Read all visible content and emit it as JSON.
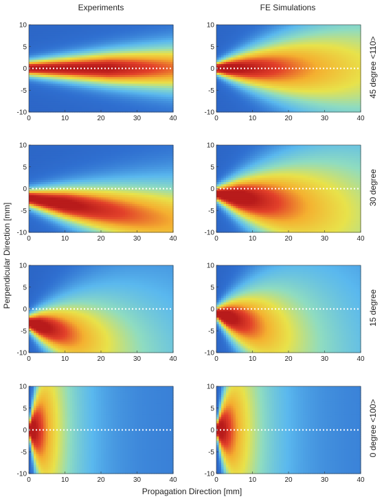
{
  "figure": {
    "column_titles": [
      "Experiments",
      "FE Simulations"
    ],
    "row_labels": [
      "45 degree <110>",
      "30 degree",
      "15 degree",
      "0 degree <100>"
    ],
    "xlabel": "Propagation Direction [mm]",
    "ylabel": "Perpendicular Direction [mm]",
    "colormap": [
      "#1f3b99",
      "#2f6fd0",
      "#5ab8ee",
      "#8fdcc0",
      "#e8e24a",
      "#f4b030",
      "#e2402a",
      "#b81b1b"
    ]
  },
  "chart_data": [
    {
      "type": "heatmap",
      "panel": "Experiments / 45 degree <110>",
      "xlim": [
        0,
        40
      ],
      "ylim": [
        -10,
        10
      ],
      "xticks": [
        0,
        10,
        20,
        30,
        40
      ],
      "yticks": [
        10,
        5,
        0,
        -5,
        -10
      ],
      "reference_line_y": 0,
      "beam": {
        "center_start": 0,
        "slope": 0,
        "width_start": 1.6,
        "width_growth": 0.01,
        "peak": 0.85,
        "peak_x": 22,
        "decay_x": 60
      }
    },
    {
      "type": "heatmap",
      "panel": "FE Simulations / 45 degree <110>",
      "xlim": [
        0,
        40
      ],
      "ylim": [
        -10,
        10
      ],
      "xticks": [
        0,
        10,
        20,
        30,
        40
      ],
      "yticks": [
        10,
        5,
        0,
        -5,
        -10
      ],
      "reference_line_y": 0,
      "beam": {
        "center_start": 0,
        "slope": 0,
        "width_start": 1.2,
        "width_growth": 0.035,
        "peak": 0.95,
        "peak_x": 3,
        "decay_x": 45
      }
    },
    {
      "type": "heatmap",
      "panel": "Experiments / 30 degree",
      "xlim": [
        0,
        40
      ],
      "ylim": [
        -10,
        10
      ],
      "xticks": [
        0,
        10,
        20,
        30,
        40
      ],
      "yticks": [
        10,
        5,
        0,
        -5,
        -10
      ],
      "reference_line_y": 0,
      "beam": {
        "center_start": -2.2,
        "slope": -0.13,
        "width_start": 1.8,
        "width_growth": 0.02,
        "peak": 0.9,
        "peak_x": 10,
        "decay_x": 60
      }
    },
    {
      "type": "heatmap",
      "panel": "FE Simulations / 30 degree",
      "xlim": [
        0,
        40
      ],
      "ylim": [
        -10,
        10
      ],
      "xticks": [
        0,
        10,
        20,
        30,
        40
      ],
      "yticks": [
        10,
        5,
        0,
        -5,
        -10
      ],
      "reference_line_y": 0,
      "beam": {
        "center_start": -1.2,
        "slope": -0.12,
        "width_start": 1.4,
        "width_growth": 0.05,
        "peak": 0.95,
        "peak_x": 6,
        "decay_x": 35
      }
    },
    {
      "type": "heatmap",
      "panel": "Experiments / 15 degree",
      "xlim": [
        0,
        40
      ],
      "ylim": [
        -10,
        10
      ],
      "xticks": [
        0,
        10,
        20,
        30,
        40
      ],
      "yticks": [
        10,
        5,
        0,
        -5,
        -10
      ],
      "reference_line_y": 0,
      "beam": {
        "center_start": -3.2,
        "slope": -0.22,
        "width_start": 1.6,
        "width_growth": 0.06,
        "peak": 0.95,
        "peak_x": 3,
        "decay_x": 22
      }
    },
    {
      "type": "heatmap",
      "panel": "FE Simulations / 15 degree",
      "xlim": [
        0,
        40
      ],
      "ylim": [
        -10,
        10
      ],
      "xticks": [
        0,
        10,
        20,
        30,
        40
      ],
      "yticks": [
        10,
        5,
        0,
        -5,
        -10
      ],
      "reference_line_y": 0,
      "beam": {
        "center_start": -1.0,
        "slope": -0.25,
        "width_start": 1.3,
        "width_growth": 0.08,
        "peak": 0.95,
        "peak_x": 3,
        "decay_x": 20
      }
    },
    {
      "type": "heatmap",
      "panel": "Experiments / 0 degree <100>",
      "xlim": [
        0,
        40
      ],
      "ylim": [
        -10,
        10
      ],
      "xticks": [
        0,
        10,
        20,
        30,
        40
      ],
      "yticks": [
        10,
        5,
        0,
        -5,
        -10
      ],
      "reference_line_y": 0,
      "beam": {
        "center_start": 0,
        "slope": 0,
        "width_start": 1.4,
        "width_growth": 0.4,
        "peak": 0.95,
        "peak_x": 1,
        "decay_x": 8
      }
    },
    {
      "type": "heatmap",
      "panel": "FE Simulations / 0 degree <100>",
      "xlim": [
        0,
        40
      ],
      "ylim": [
        -10,
        10
      ],
      "xticks": [
        0,
        10,
        20,
        30,
        40
      ],
      "yticks": [
        10,
        5,
        0,
        -5,
        -10
      ],
      "reference_line_y": 0,
      "beam": {
        "center_start": 0,
        "slope": 0,
        "width_start": 1.3,
        "width_growth": 0.35,
        "peak": 0.95,
        "peak_x": 1,
        "decay_x": 9
      }
    }
  ]
}
